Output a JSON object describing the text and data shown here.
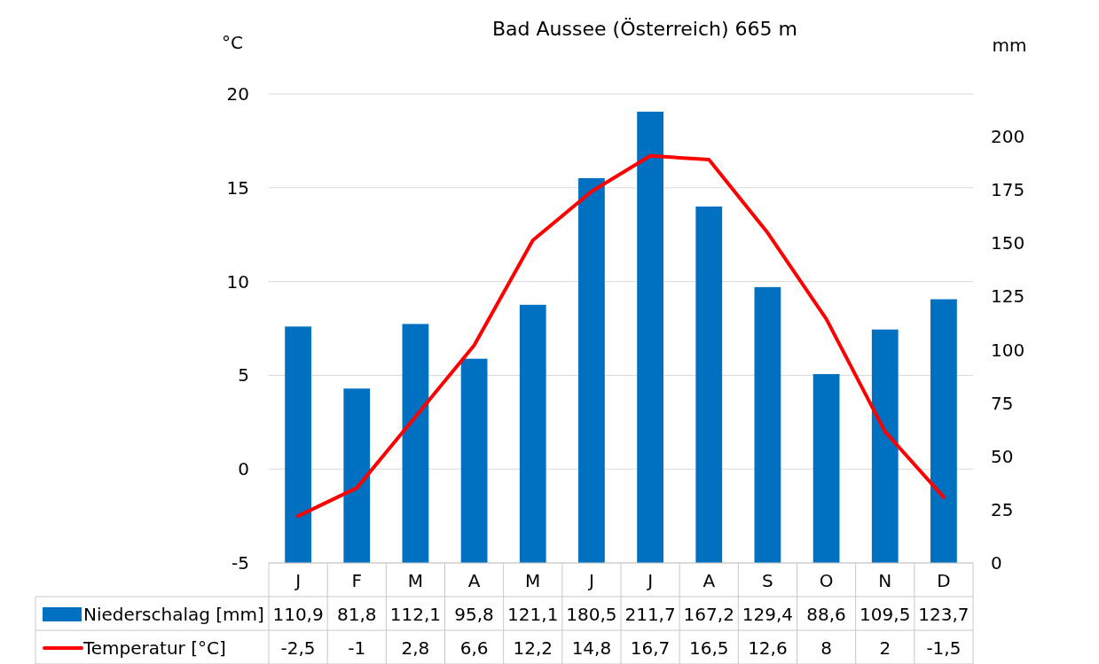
{
  "chart_data": {
    "type": "bar",
    "title": "Bad Aussee (Österreich) 665 m",
    "ylabel": "°C",
    "y2label": "mm",
    "categories": [
      "J",
      "F",
      "M",
      "A",
      "M",
      "J",
      "J",
      "A",
      "S",
      "O",
      "N",
      "D"
    ],
    "series": [
      {
        "name": "Niederschalag [mm]",
        "axis": "y2",
        "color": "#0070c0",
        "values": [
          110.9,
          81.8,
          112.1,
          95.8,
          121.1,
          180.5,
          211.7,
          167.2,
          129.4,
          88.6,
          109.5,
          123.7
        ],
        "value_labels": [
          "110,9",
          "81,8",
          "112,1",
          "95,8",
          "121,1",
          "180,5",
          "211,7",
          "167,2",
          "129,4",
          "88,6",
          "109,5",
          "123,7"
        ]
      },
      {
        "name": "Temperatur [°C]",
        "type": "line",
        "axis": "y",
        "color": "#ff0000",
        "values": [
          -2.5,
          -1,
          2.8,
          6.6,
          12.2,
          14.8,
          16.7,
          16.5,
          12.6,
          8,
          2,
          -1.5
        ],
        "value_labels": [
          "-2,5",
          "-1",
          "2,8",
          "6,6",
          "12,2",
          "14,8",
          "16,7",
          "16,5",
          "12,6",
          "8",
          "2",
          "-1,5"
        ]
      }
    ],
    "ylim": [
      -5,
      20
    ],
    "yticks": [
      -5,
      0,
      5,
      10,
      15,
      20
    ],
    "y2lim": [
      0,
      220
    ],
    "y2ticks": [
      0,
      25,
      50,
      75,
      100,
      125,
      150,
      175,
      200
    ],
    "grid": "y",
    "legend": "bottom",
    "marker": "none",
    "line_style": "solid"
  }
}
